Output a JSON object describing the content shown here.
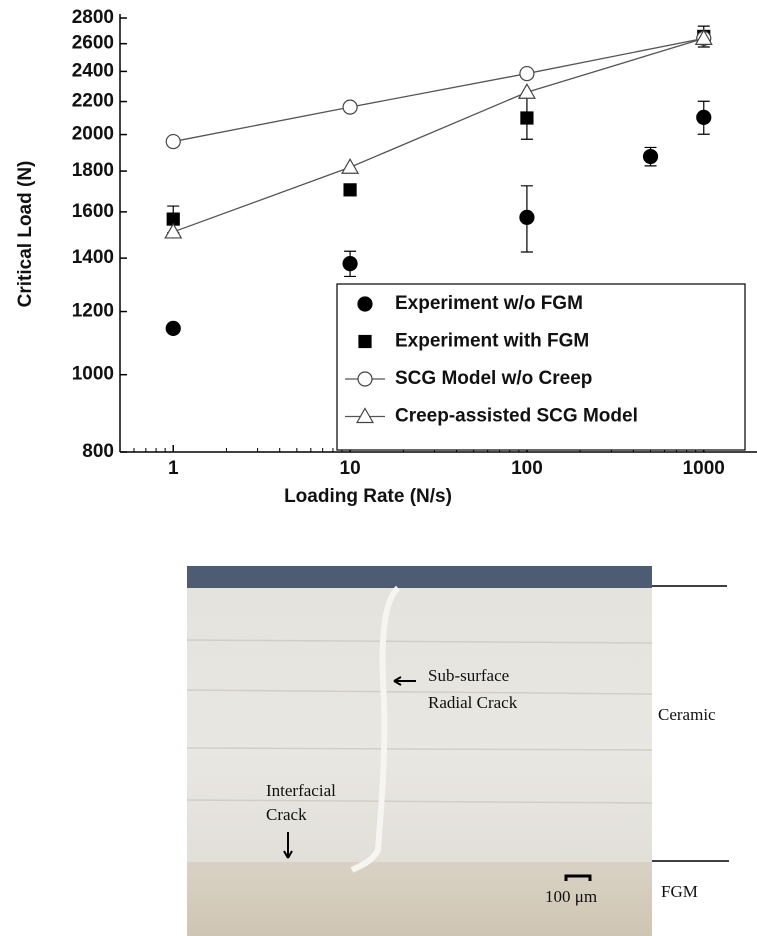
{
  "chart_data": {
    "type": "scatter-line",
    "x_label": "Loading Rate (N/s)",
    "y_label": "Critical Load (N)",
    "xlim": [
      0.5,
      2000
    ],
    "ylim": [
      800,
      2800
    ],
    "log_x": true,
    "log_y": true,
    "xticks": [
      1,
      10,
      100,
      1000
    ],
    "yticks": [
      800,
      1000,
      1200,
      1400,
      1600,
      1800,
      2000,
      2200,
      2400,
      2600,
      2800
    ],
    "legend": "lower right",
    "series": [
      {
        "name": "Experiment w/o FGM",
        "color": "#000000",
        "marker": "circle",
        "filled": true,
        "line": false,
        "x": [
          1,
          10,
          100,
          500,
          1000
        ],
        "values": [
          1143,
          1378,
          1575,
          1877,
          2102
        ],
        "errors": [
          null,
          50,
          150,
          50,
          100
        ]
      },
      {
        "name": "Experiment with FGM",
        "color": "#000000",
        "marker": "square",
        "filled": true,
        "line": false,
        "x": [
          1,
          10,
          100,
          1000
        ],
        "values": [
          1567,
          1705,
          2098,
          2655
        ],
        "errors": [
          60,
          null,
          125,
          80
        ]
      },
      {
        "name": "SCG Model w/o Creep",
        "color": "#555555",
        "marker": "circle",
        "filled": false,
        "line": true,
        "x": [
          1,
          10,
          100,
          1000
        ],
        "values": [
          1960,
          2165,
          2385,
          2640
        ],
        "errors": [
          null,
          null,
          null,
          null
        ]
      },
      {
        "name": "Creep-assisted SCG Model",
        "color": "#555555",
        "marker": "triangle",
        "filled": false,
        "line": true,
        "x": [
          1,
          10,
          100,
          1000
        ],
        "values": [
          1510,
          1820,
          2260,
          2640
        ],
        "errors": [
          null,
          null,
          null,
          null
        ]
      }
    ]
  },
  "photo": {
    "labels": [
      "Sub-surface",
      "Radial Crack",
      "Ceramic",
      "Interfacial",
      "Crack",
      "100 μm",
      "FGM"
    ]
  }
}
